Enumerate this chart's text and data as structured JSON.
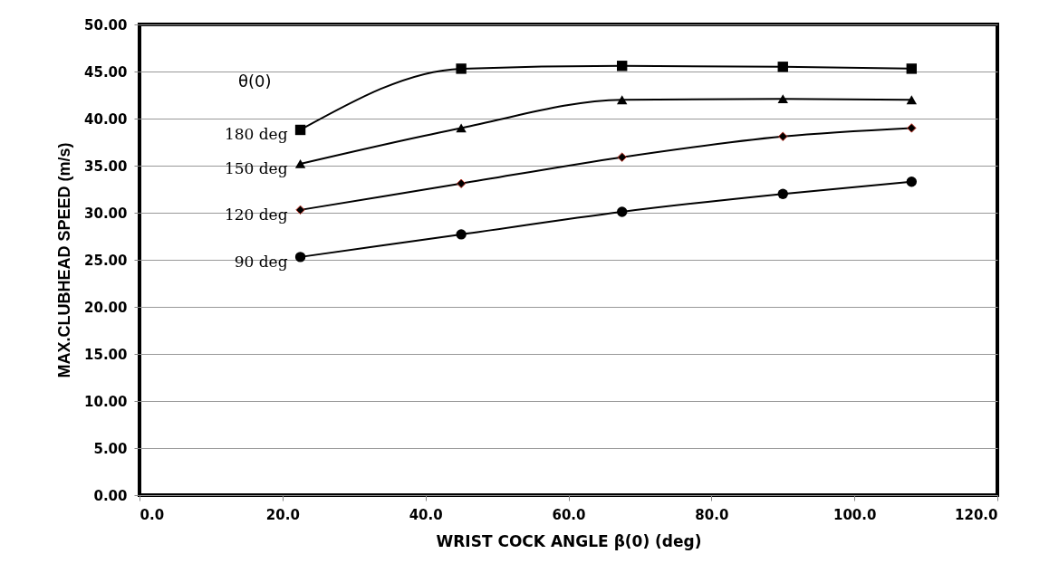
{
  "chart_data": {
    "type": "line",
    "xlabel": "WRIST COCK ANGLE β(0)  (deg)",
    "ylabel": "MAX.CLUBHEAD SPEED (m/s)",
    "legend_title": "θ(0)",
    "x": [
      22.5,
      45,
      67.5,
      90,
      108
    ],
    "series": [
      {
        "name": "180 deg",
        "color": "#000000",
        "marker": "square",
        "values": [
          38.8,
          45.3,
          45.6,
          45.5,
          45.3
        ]
      },
      {
        "name": "150 deg",
        "color": "#000000",
        "marker": "triangle",
        "values": [
          35.2,
          39.0,
          42.0,
          42.1,
          42.0
        ]
      },
      {
        "name": "120 deg",
        "color": "#000000",
        "marker": "diamond",
        "values": [
          30.3,
          33.1,
          35.9,
          38.1,
          39.0
        ]
      },
      {
        "name": "90 deg",
        "color": "#000000",
        "marker": "circle",
        "values": [
          25.3,
          27.7,
          30.1,
          32.0,
          33.3
        ]
      }
    ],
    "xlim": [
      0,
      120
    ],
    "xticks": [
      {
        "value": 0,
        "label": "0.0"
      },
      {
        "value": 20,
        "label": "20.0"
      },
      {
        "value": 40,
        "label": "40.0"
      },
      {
        "value": 60,
        "label": "60.0"
      },
      {
        "value": 80,
        "label": "80.0"
      },
      {
        "value": 100,
        "label": "100.0"
      },
      {
        "value": 120,
        "label": "120.0"
      }
    ],
    "ylim": [
      0,
      50
    ],
    "yticks": [
      {
        "value": 0,
        "label": "0.00"
      },
      {
        "value": 5,
        "label": "5.00"
      },
      {
        "value": 10,
        "label": "10.00"
      },
      {
        "value": 15,
        "label": "15.00"
      },
      {
        "value": 20,
        "label": "20.00"
      },
      {
        "value": 25,
        "label": "25.00"
      },
      {
        "value": 30,
        "label": "30.00"
      },
      {
        "value": 35,
        "label": "35.00"
      },
      {
        "value": 40,
        "label": "40.00"
      },
      {
        "value": 45,
        "label": "45.00"
      },
      {
        "value": 50,
        "label": "50.00"
      }
    ],
    "grid": "y",
    "line_style": "solid"
  }
}
